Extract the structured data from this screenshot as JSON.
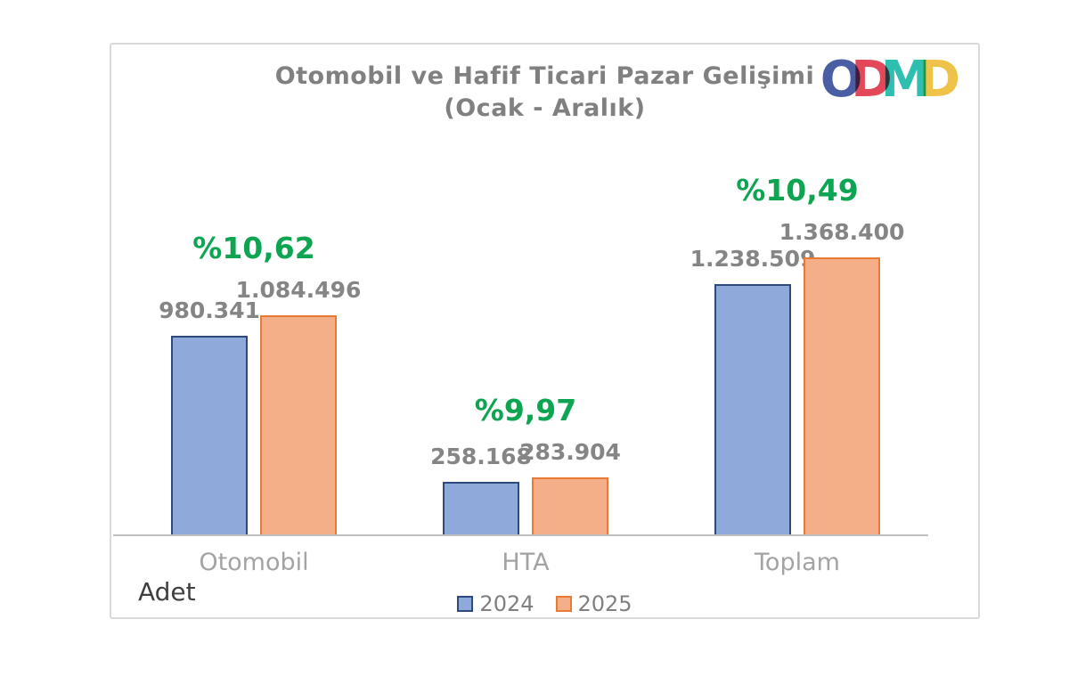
{
  "header": {
    "title_line1": "Otomobil ve Hafif Ticari Pazar Gelişimi",
    "title_line2": "(Ocak - Aralık)"
  },
  "logo": {
    "name": "ODMD",
    "letters": [
      {
        "char": "O",
        "color": "#4A5EA4"
      },
      {
        "char": "D",
        "color": "#E24858"
      },
      {
        "char": "M",
        "color": "#2FBFB0"
      },
      {
        "char": "D",
        "color": "#EFC34A"
      }
    ]
  },
  "chart_data": {
    "type": "bar",
    "title": "Otomobil ve Hafif Ticari Pazar Gelişimi (Ocak - Aralık)",
    "categories": [
      "Otomobil",
      "HTA",
      "Toplam"
    ],
    "series": [
      {
        "name": "2024",
        "fill_color": "#8FA9DB",
        "border_color": "#2A4B7C",
        "values": [
          980341,
          258168,
          1238509
        ],
        "value_labels": [
          "980.341",
          "258.168",
          "1.238.509"
        ]
      },
      {
        "name": "2025",
        "fill_color": "#F5AF88",
        "border_color": "#E87A33",
        "values": [
          1084496,
          283904,
          1368400
        ],
        "value_labels": [
          "1.084.496",
          "283.904",
          "1.368.400"
        ]
      }
    ],
    "growth_labels": [
      "%10,62",
      "%9,97",
      "%10,49"
    ],
    "growth_color": "#0EA552",
    "xlabel": "",
    "ylabel": "Adet",
    "ylim": [
      0,
      1450000
    ],
    "grid": false,
    "legend_position": "bottom-center",
    "value_label_color": "#858585",
    "category_label_color": "#A3A3A3",
    "axis_line_color": "#C0C0C0"
  },
  "legend": {
    "items": [
      {
        "label": "2024",
        "fill": "#8FA9DB",
        "border": "#2A4B7C"
      },
      {
        "label": "2025",
        "fill": "#F5AF88",
        "border": "#E87A33"
      }
    ]
  }
}
